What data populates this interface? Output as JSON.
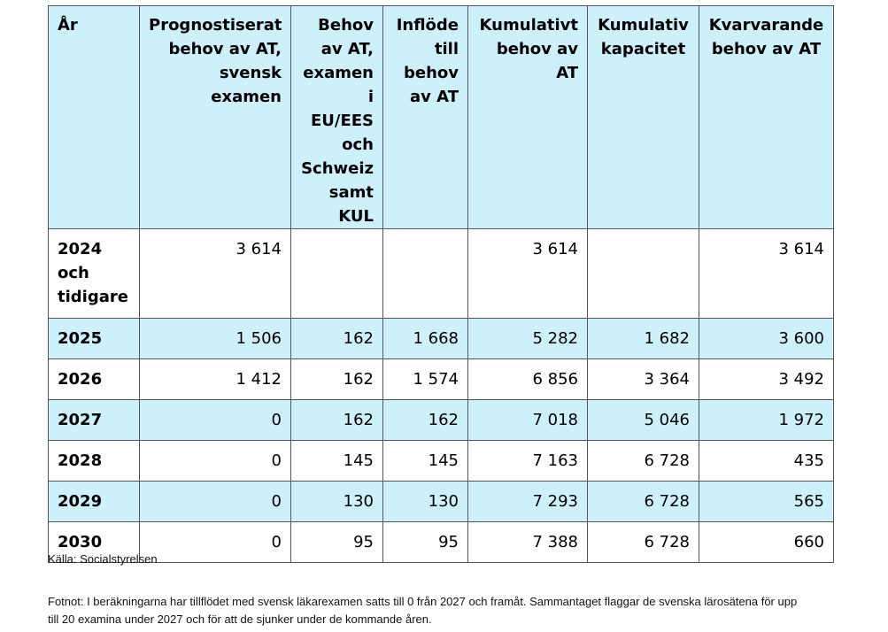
{
  "table": {
    "headers": [
      "År",
      "Prognostiserat behov av AT, svensk examen",
      "Behov av AT, examen i EU/EES och Schweiz samt KUL",
      "Inflöde till behov av AT",
      "Kumulativt behov av AT",
      "Kumulativ kapacitet",
      "Kvarvarande behov av AT"
    ],
    "rows": [
      [
        "2024 och tidigare",
        "3 614",
        "",
        "",
        "3 614",
        "",
        "3 614"
      ],
      [
        "2025",
        "1 506",
        "162",
        "1 668",
        "5 282",
        "1 682",
        "3 600"
      ],
      [
        "2026",
        "1 412",
        "162",
        "1 574",
        "6 856",
        "3 364",
        "3 492"
      ],
      [
        "2027",
        "0",
        "162",
        "162",
        "7 018",
        "5 046",
        "1 972"
      ],
      [
        "2028",
        "0",
        "145",
        "145",
        "7 163",
        "6 728",
        "435"
      ],
      [
        "2029",
        "0",
        "130",
        "130",
        "7 293",
        "6 728",
        "565"
      ],
      [
        "2030",
        "0",
        "95",
        "95",
        "7 388",
        "6 728",
        "660"
      ]
    ]
  },
  "source": "Källa: Socialstyrelsen",
  "footnote": "Fotnot: I beräkningarna har tillflödet med svensk läkarexamen satts till 0 från 2027 och framåt. Sammantaget flaggar de svenska lärosätena för upp till 20 examina under 2027 och för att de sjunker under de kommande åren.",
  "colors": {
    "header_bg": "#cdf1fb",
    "shaded_row_bg": "#cdf1fb",
    "border": "#555555"
  }
}
